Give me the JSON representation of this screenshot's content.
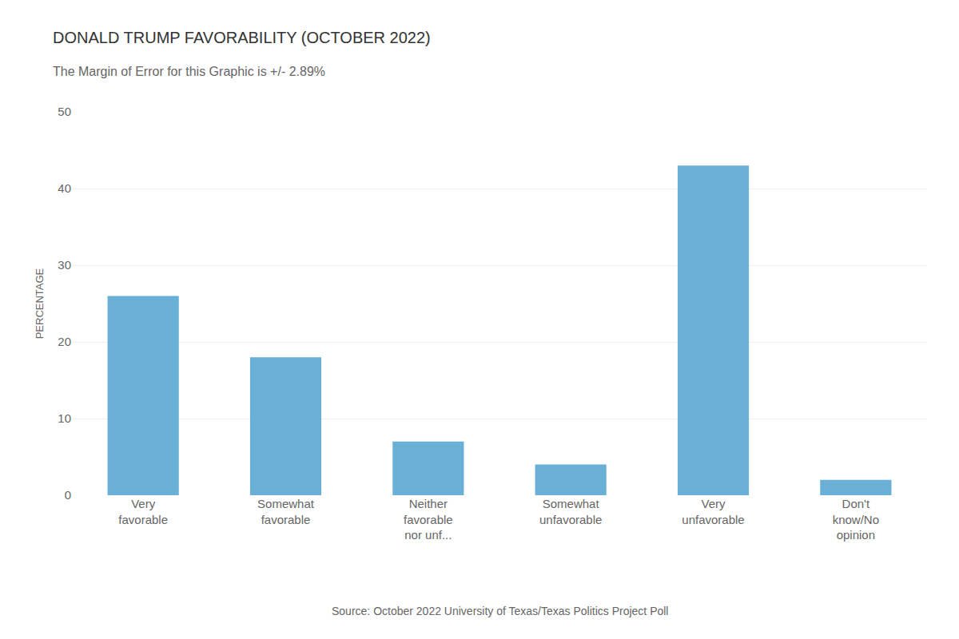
{
  "chart_data": {
    "type": "bar",
    "title": "DONALD TRUMP FAVORABILITY (OCTOBER 2022)",
    "subtitle": "The Margin of Error for this Graphic is +/- 2.89%",
    "source": "Source: October 2022 University of Texas/Texas Politics Project Poll",
    "categories": [
      "Very\nfavorable",
      "Somewhat\nfavorable",
      "Neither\nfavorable\nnor unf...",
      "Somewhat\nunfavorable",
      "Very\nunfavorable",
      "Don't\nknow/No\nopinion"
    ],
    "values": [
      26,
      18,
      7,
      4,
      43,
      2
    ],
    "color": "#6AAFD6",
    "ylabel": "PERCENTAGE",
    "ylim": [
      0,
      50
    ],
    "yticks": [
      0,
      10,
      20,
      30,
      40,
      50
    ],
    "grid": true
  }
}
